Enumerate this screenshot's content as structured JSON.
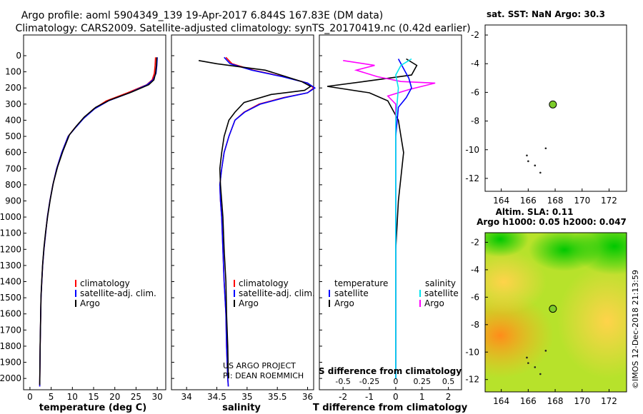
{
  "header": {
    "line1": "Argo profile: aoml 5904349_139 19-Apr-2017 6.844S 167.83E (DM data)",
    "line2": "Climatology: CARS2009. Satellite-adjusted climatology: synTS_20170419.nc (0.42d earlier)"
  },
  "credits": {
    "project": "US ARGO PROJECT",
    "pi": "PI: DEAN ROEMMICH",
    "stamp": "©IMOS 12-Dec-2018 21:13:59"
  },
  "colors": {
    "climatology": "#ff0000",
    "satellite": "#0000ff",
    "argo": "#000000",
    "t_diff": "#000000",
    "s_diff": "#ff00ff",
    "t_sat_diff": "#0000ff",
    "s_sat_diff": "#00e5ee",
    "float": "#7ccc2a"
  },
  "chart_data": [
    {
      "id": "temperature",
      "type": "line",
      "xlabel": "temperature (deg C)",
      "ylabel": "",
      "xlim": [
        -1.5,
        32
      ],
      "ylim": [
        2070,
        0
      ],
      "xticks": [
        0,
        5,
        10,
        15,
        20,
        25,
        30
      ],
      "yticks": [
        0,
        100,
        200,
        300,
        400,
        500,
        600,
        700,
        800,
        900,
        1000,
        1100,
        1200,
        1300,
        1400,
        1500,
        1600,
        1700,
        1800,
        1900,
        2000
      ],
      "legend": {
        "position": "bottom-right",
        "items": [
          "climatology",
          "satellite-adj. clim.",
          "Argo"
        ]
      },
      "series": [
        {
          "name": "climatology",
          "color_key": "climatology",
          "x": [
            29.6,
            29.5,
            29.3,
            28.8,
            27.5,
            23.0,
            18.0,
            15.0,
            12.5,
            10.5,
            9.0,
            7.5,
            6.3,
            5.4,
            4.7,
            4.1,
            3.7,
            3.3,
            3.0,
            2.8,
            2.6,
            2.4,
            2.3
          ],
          "y": [
            10,
            60,
            110,
            150,
            180,
            230,
            280,
            330,
            390,
            450,
            500,
            600,
            700,
            800,
            900,
            1000,
            1100,
            1200,
            1300,
            1400,
            1500,
            1800,
            2050
          ]
        },
        {
          "name": "satellite-adj. clim.",
          "color_key": "satellite",
          "x": [
            30.0,
            29.9,
            29.7,
            29.0,
            27.6,
            23.5,
            18.5,
            15.2,
            12.6,
            10.6,
            9.0,
            7.5,
            6.3,
            5.4,
            4.7,
            4.1,
            3.7,
            3.3,
            3.0,
            2.8,
            2.6,
            2.4,
            2.3
          ],
          "y": [
            10,
            60,
            110,
            150,
            180,
            230,
            280,
            330,
            390,
            450,
            500,
            600,
            700,
            800,
            900,
            1000,
            1100,
            1200,
            1300,
            1400,
            1500,
            1800,
            2050
          ]
        },
        {
          "name": "Argo",
          "color_key": "argo",
          "x": [
            29.9,
            29.8,
            29.6,
            29.2,
            28.0,
            24.0,
            18.8,
            15.5,
            12.8,
            10.8,
            9.3,
            7.8,
            6.5,
            5.5,
            4.8,
            4.2,
            3.7,
            3.3,
            3.0,
            2.8,
            2.6,
            2.4,
            2.3
          ],
          "y": [
            10,
            60,
            110,
            150,
            180,
            225,
            275,
            320,
            380,
            440,
            490,
            590,
            690,
            790,
            890,
            990,
            1090,
            1190,
            1290,
            1390,
            1490,
            1790,
            2040
          ]
        }
      ]
    },
    {
      "id": "salinity",
      "type": "line",
      "xlabel": "salinity",
      "xlim": [
        33.75,
        36.1
      ],
      "ylim": [
        2070,
        0
      ],
      "xticks": [
        34,
        34.5,
        35,
        35.5,
        36
      ],
      "legend": {
        "position": "bottom-right",
        "items": [
          "climatology",
          "satellite-adj. clim.",
          "Argo"
        ]
      },
      "series": [
        {
          "name": "climatology",
          "color_key": "climatology",
          "x": [
            34.65,
            34.75,
            35.1,
            35.6,
            36.0,
            36.1,
            36.0,
            35.6,
            35.2,
            34.95,
            34.8,
            34.7,
            34.62,
            34.58,
            34.55,
            34.56,
            34.58,
            34.6,
            34.62,
            34.65,
            34.66,
            34.68,
            34.69
          ],
          "y": [
            10,
            50,
            90,
            130,
            170,
            200,
            230,
            260,
            300,
            350,
            400,
            500,
            600,
            700,
            800,
            900,
            1000,
            1200,
            1400,
            1600,
            1800,
            2000,
            2050
          ]
        },
        {
          "name": "satellite-adj. clim.",
          "color_key": "satellite",
          "x": [
            34.62,
            34.72,
            35.08,
            35.58,
            36.0,
            36.12,
            36.0,
            35.62,
            35.22,
            34.96,
            34.8,
            34.7,
            34.62,
            34.58,
            34.55,
            34.56,
            34.58,
            34.6,
            34.62,
            34.65,
            34.66,
            34.68,
            34.69
          ],
          "y": [
            10,
            50,
            90,
            130,
            170,
            200,
            230,
            260,
            300,
            350,
            400,
            500,
            600,
            700,
            800,
            900,
            1000,
            1200,
            1400,
            1600,
            1800,
            2000,
            2050
          ]
        },
        {
          "name": "Argo",
          "color_key": "argo",
          "x": [
            34.2,
            34.5,
            35.3,
            35.9,
            36.05,
            35.95,
            35.4,
            34.95,
            34.8,
            34.7,
            34.62,
            34.58,
            34.55,
            34.56,
            34.58,
            34.6,
            34.62,
            34.65,
            34.66,
            34.68,
            34.69
          ],
          "y": [
            30,
            50,
            90,
            160,
            190,
            215,
            240,
            290,
            350,
            400,
            500,
            600,
            700,
            800,
            900,
            1000,
            1200,
            1400,
            1600,
            1800,
            2000
          ]
        }
      ]
    },
    {
      "id": "difference",
      "type": "line",
      "xlabel": "T difference from climatology",
      "xlabel_top": "S difference from climatology",
      "xlim": [
        -2.9,
        2.5
      ],
      "ylim": [
        2070,
        0
      ],
      "xticks": [
        -2,
        -1,
        0,
        1,
        2
      ],
      "xtick_labels": [
        "-2",
        "-1",
        "0",
        "1",
        "2"
      ],
      "s_ticks": [
        -0.5,
        -0.25,
        0,
        0.25,
        0.5
      ],
      "s_tick_labels": [
        "-0.5",
        "-0.25",
        "0",
        "0.25",
        "0.5"
      ],
      "legend": {
        "position": "bottom",
        "temp_header": "temperature",
        "sal_header": "salinity",
        "items_left": [
          "satellite",
          "Argo"
        ],
        "items_right": [
          "satellite",
          "Argo"
        ]
      },
      "series": [
        {
          "name": "T Argo - clim",
          "color_key": "t_diff",
          "x": [
            0.4,
            0.8,
            0.6,
            -0.3,
            -1.2,
            -2.6,
            -1.0,
            -0.3,
            0.1,
            0.2,
            0.3,
            0.1,
            0.0,
            0.0,
            0.0
          ],
          "y": [
            20,
            60,
            120,
            140,
            160,
            190,
            230,
            280,
            400,
            500,
            600,
            900,
            1200,
            1500,
            2000
          ]
        },
        {
          "name": "S Argo - clim",
          "color_key": "s_diff",
          "x": [
            -2.0,
            -0.8,
            -1.5,
            -0.7,
            0.2,
            1.5,
            0.5,
            -0.3,
            0.0,
            0.0,
            0.0
          ],
          "y": [
            30,
            60,
            90,
            130,
            160,
            170,
            210,
            250,
            300,
            400,
            2000
          ]
        },
        {
          "name": "T sat - clim",
          "color_key": "t_sat_diff",
          "x": [
            0.1,
            0.3,
            0.5,
            0.6,
            0.4,
            0.1,
            0.0,
            0.0,
            0.0
          ],
          "y": [
            20,
            80,
            140,
            200,
            260,
            320,
            500,
            1000,
            2000
          ]
        },
        {
          "name": "S sat - clim",
          "color_key": "s_sat_diff",
          "x": [
            0.6,
            0.2,
            0.0,
            0.1,
            0.0,
            0.0,
            0.0
          ],
          "y": [
            20,
            60,
            120,
            200,
            400,
            1000,
            2000
          ]
        }
      ]
    },
    {
      "id": "sst-map",
      "type": "scatter",
      "title": "sat. SST: NaN Argo: 30.3",
      "xlim": [
        162.8,
        173.3
      ],
      "ylim": [
        -12.9,
        -1.3
      ],
      "xticks": [
        164,
        166,
        168,
        170,
        172
      ],
      "yticks": [
        -2,
        -4,
        -6,
        -8,
        -10,
        -12
      ],
      "float_position": {
        "lon": 167.83,
        "lat": -6.844
      }
    },
    {
      "id": "sla-map",
      "type": "heatmap",
      "title1": "Altim. SLA: 0.11",
      "title2": "Argo h1000: 0.05 h2000: 0.047",
      "xlim": [
        162.8,
        173.3
      ],
      "ylim": [
        -12.9,
        -1.3
      ],
      "xticks": [
        164,
        166,
        168,
        170,
        172
      ],
      "yticks": [
        -2,
        -4,
        -6,
        -8,
        -10,
        -12
      ],
      "float_position": {
        "lon": 167.83,
        "lat": -6.844
      }
    }
  ]
}
